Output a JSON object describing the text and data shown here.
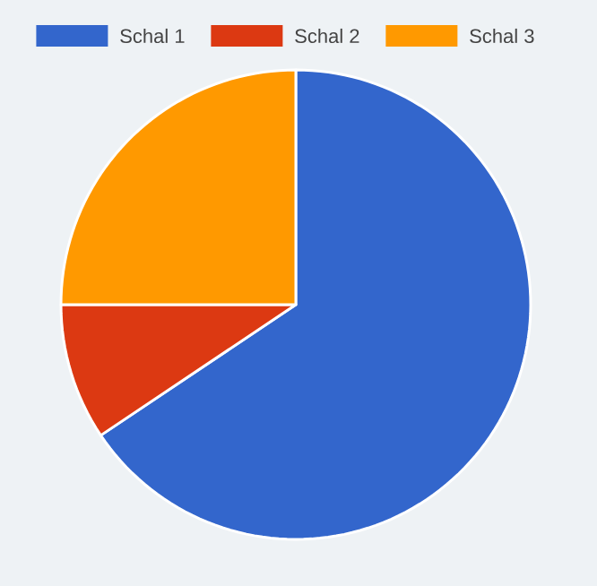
{
  "chart_data": {
    "type": "pie",
    "categories": [
      "Schal 1",
      "Schal 2",
      "Schal 3"
    ],
    "values": [
      65.6,
      9.4,
      25
    ],
    "colors": [
      "#3366cc",
      "#dc3912",
      "#ff9900"
    ],
    "legend": "top"
  }
}
